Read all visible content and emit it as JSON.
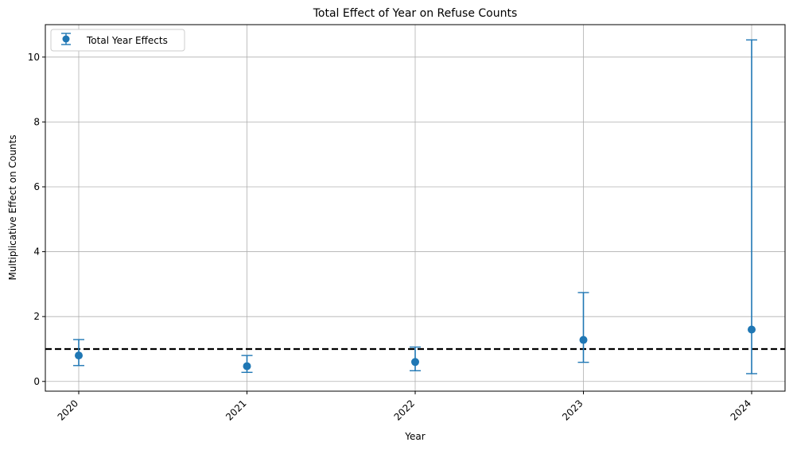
{
  "chart_data": {
    "type": "scatter",
    "title": "Total Effect of Year on Refuse Counts",
    "xlabel": "Year",
    "ylabel": "Multiplicative Effect on Counts",
    "categories": [
      "2020",
      "2021",
      "2022",
      "2023",
      "2024"
    ],
    "series": [
      {
        "name": "Total Year Effects",
        "values": [
          0.8,
          0.47,
          0.6,
          1.28,
          1.6
        ],
        "lower": [
          0.49,
          0.28,
          0.33,
          0.59,
          0.24
        ],
        "upper": [
          1.29,
          0.8,
          1.06,
          2.74,
          10.53
        ],
        "color": "#1f77b4"
      }
    ],
    "reference_line": {
      "y": 1.0,
      "color": "#000000",
      "style": "dashed"
    },
    "ylim": [
      -0.3,
      11.0
    ],
    "yticks": [
      0,
      2,
      4,
      6,
      8,
      10
    ],
    "grid": true,
    "legend_position": "top-left"
  }
}
